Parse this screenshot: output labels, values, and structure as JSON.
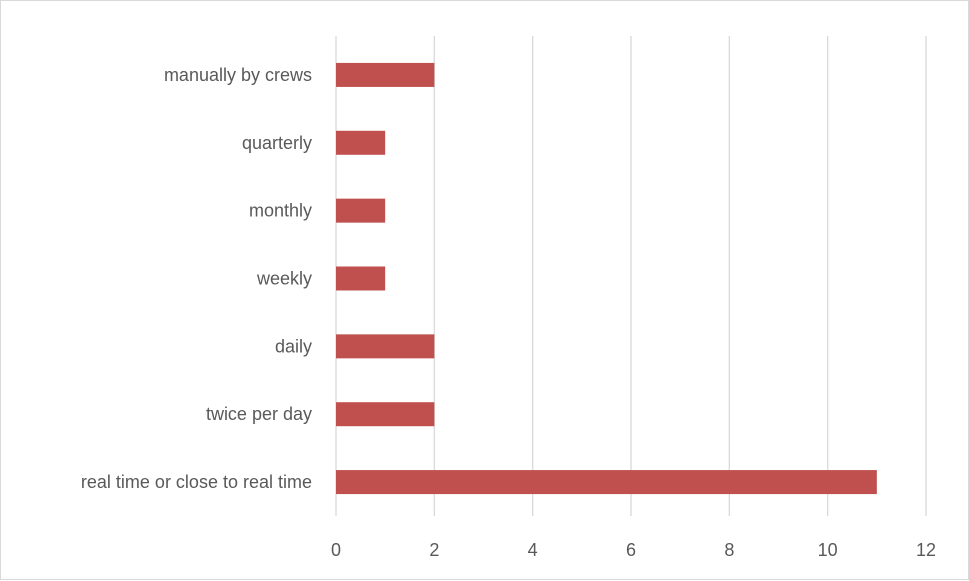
{
  "chart_data": {
    "type": "bar",
    "orientation": "horizontal",
    "categories": [
      "real time or close to real time",
      "twice per day",
      "daily",
      "weekly",
      "monthly",
      "quarterly",
      "manually by crews"
    ],
    "values": [
      11,
      2,
      2,
      1,
      1,
      1,
      2
    ],
    "xlim": [
      0,
      12
    ],
    "xticks": [
      "0",
      "2",
      "4",
      "6",
      "8",
      "10",
      "12"
    ],
    "grid": "vertical",
    "legend": "none",
    "bar_color": "#c0504d",
    "grid_color": "#d9d9d9",
    "text_color": "#595959"
  }
}
